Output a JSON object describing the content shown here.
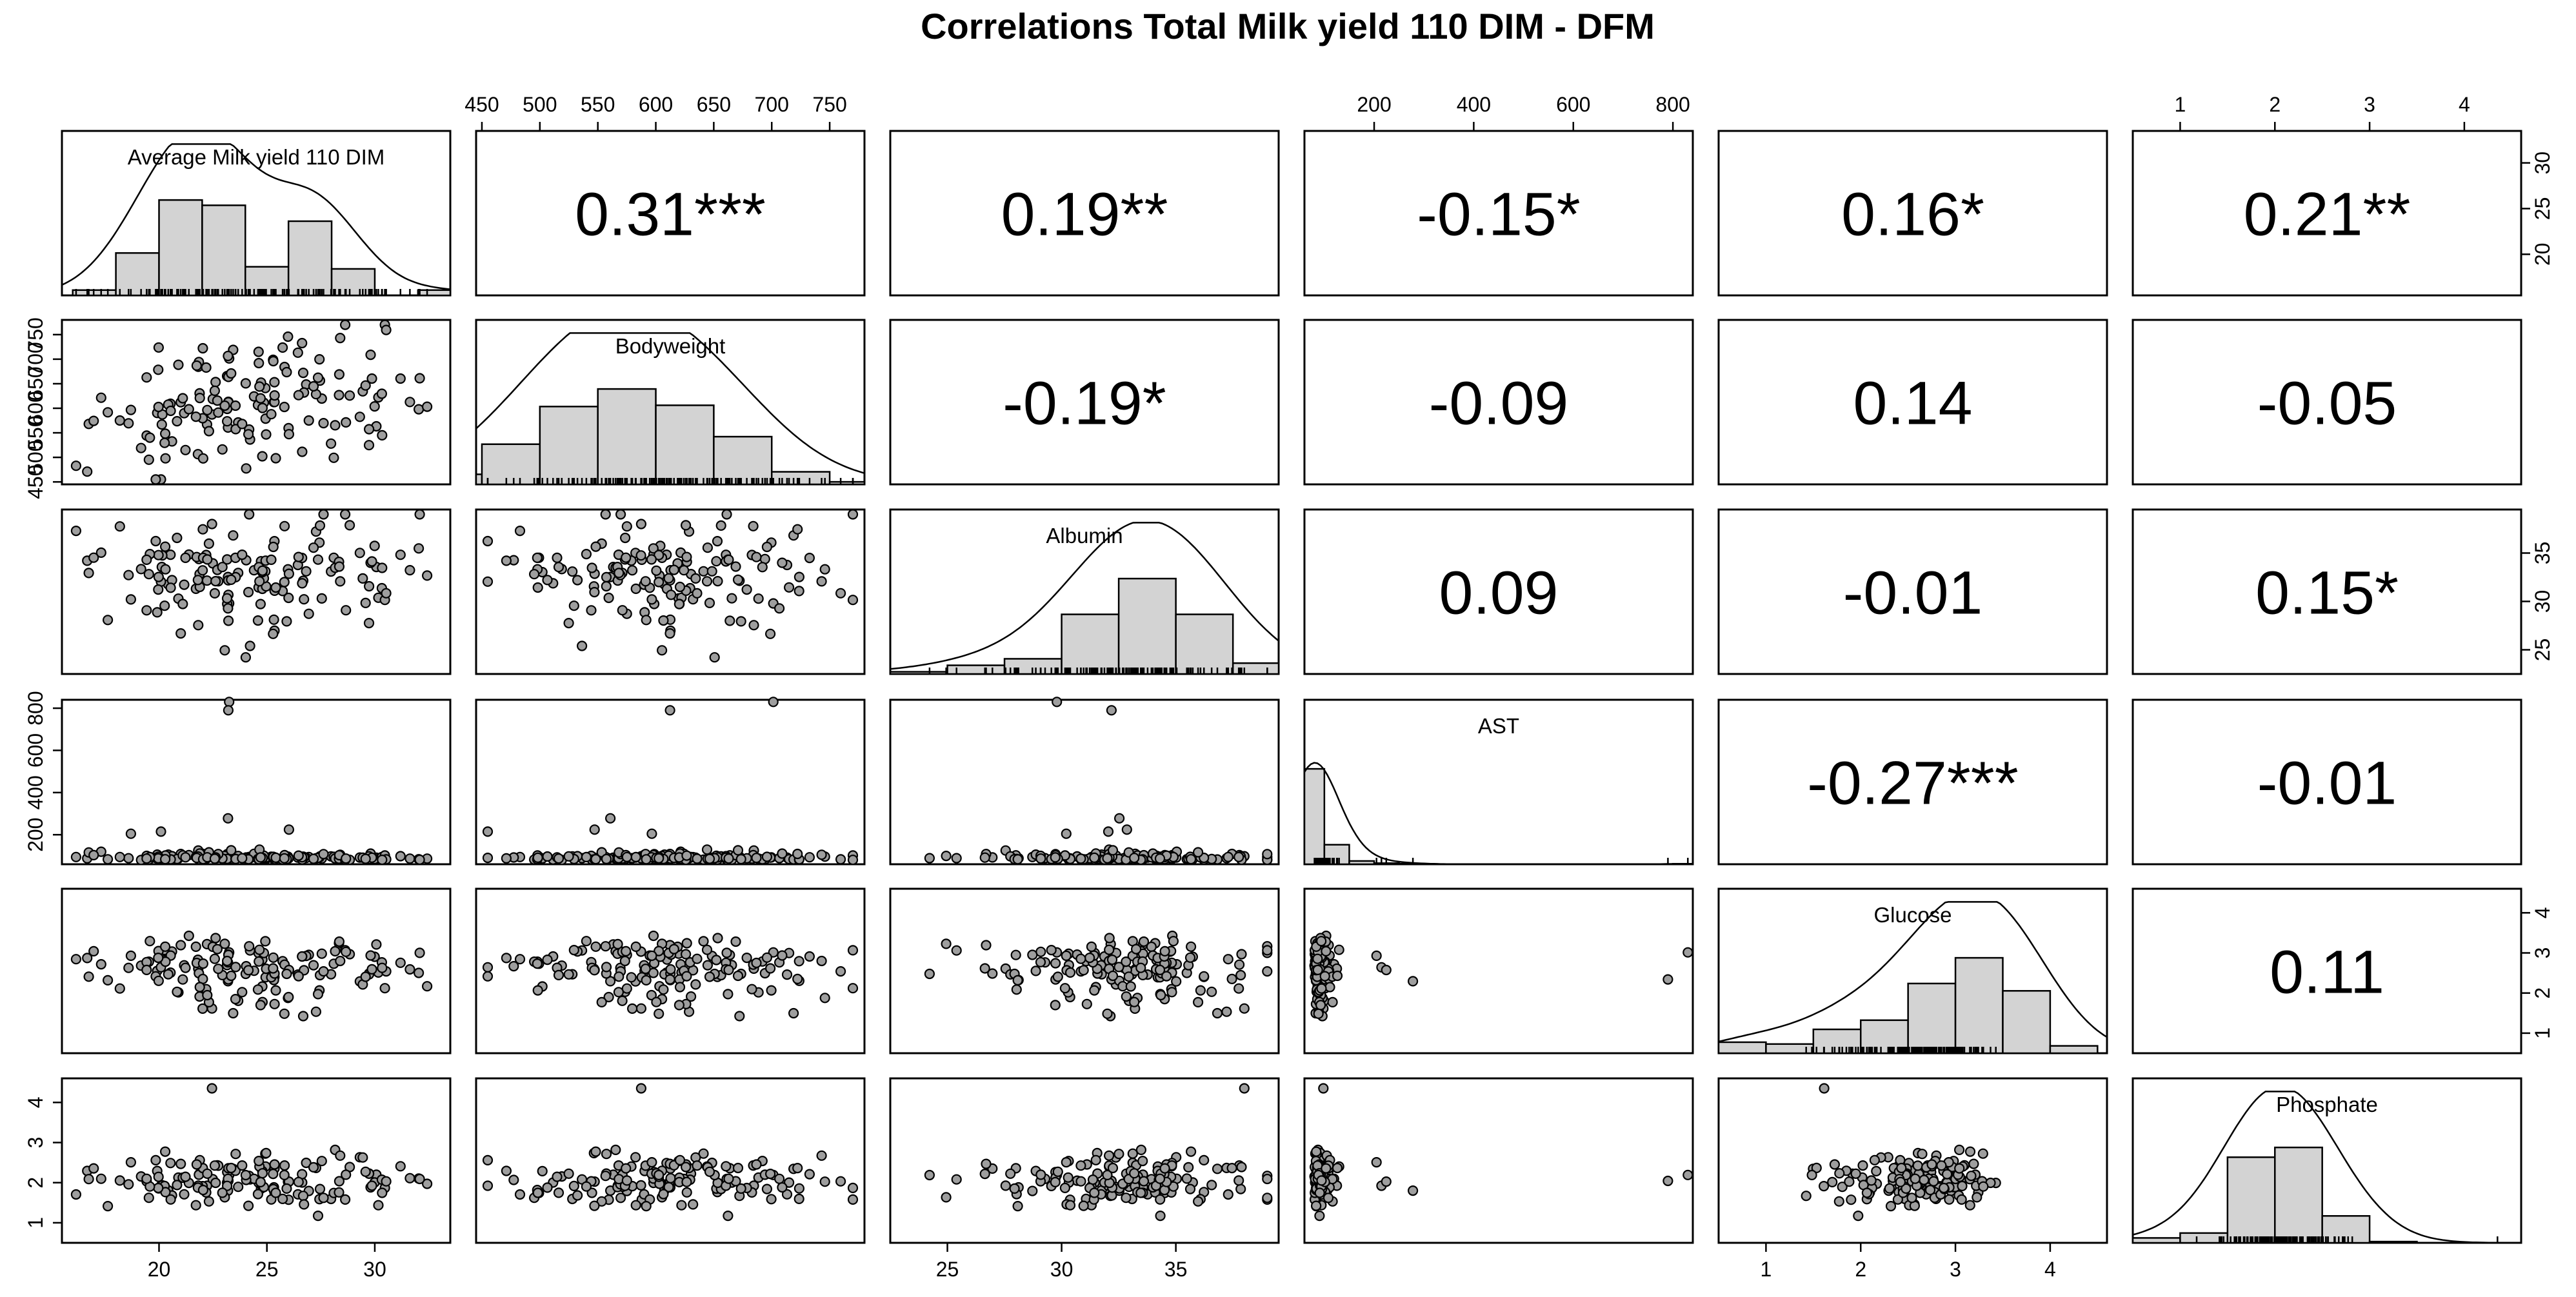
{
  "chart_data": {
    "type": "scatter",
    "subtype": "pairs-matrix",
    "title": "Correlations Total Milk yield 110 DIM - DFM",
    "variables": [
      {
        "name": "Average Milk yield 110 DIM",
        "range": [
          15.5,
          33.5
        ],
        "ticks": [
          20,
          25,
          30
        ],
        "histogram": {
          "breaks": [
            16,
            18,
            20,
            22,
            24,
            26,
            28,
            30,
            32,
            34
          ],
          "counts": [
            0.05,
            0.4,
            0.9,
            0.85,
            0.27,
            0.7,
            0.25,
            0,
            0.05
          ]
        }
      },
      {
        "name": "Bodyweight",
        "range": [
          445,
          780
        ],
        "ticks": [
          450,
          500,
          550,
          600,
          650,
          700,
          750
        ],
        "histogram": {
          "breaks": [
            400,
            450,
            500,
            550,
            600,
            650,
            700,
            750,
            800
          ],
          "counts": [
            0.08,
            0.32,
            0.62,
            0.76,
            0.63,
            0.38,
            0.1,
            0.02
          ]
        }
      },
      {
        "name": "Albumin",
        "range": [
          22.5,
          39.5
        ],
        "ticks": [
          25,
          30,
          35
        ],
        "histogram": {
          "breaks": [
            20,
            22.5,
            25,
            27.5,
            30,
            32.5,
            35,
            37.5,
            40
          ],
          "counts": [
            0.01,
            0.02,
            0.08,
            0.14,
            0.55,
            0.88,
            0.55,
            0.1
          ]
        }
      },
      {
        "name": "AST",
        "range": [
          60,
          840
        ],
        "ticks": [
          200,
          400,
          600,
          800
        ],
        "histogram": {
          "breaks": [
            0,
            50,
            100,
            150,
            200,
            250,
            300,
            350,
            400,
            450,
            500,
            550,
            600,
            650,
            700,
            750,
            800,
            850
          ],
          "counts": [
            0.0,
            0.88,
            0.18,
            0.03,
            0.01,
            0.005,
            0.0,
            0.0,
            0.0,
            0.0,
            0.0,
            0.0,
            0.0,
            0.0,
            0.0,
            0.0,
            0.004
          ]
        }
      },
      {
        "name": "Glucose",
        "range": [
          0.5,
          4.6
        ],
        "ticks": [
          1,
          2,
          3,
          4
        ],
        "histogram": {
          "breaks": [
            0.5,
            1,
            1.5,
            2,
            2.5,
            3,
            3.5,
            4,
            4.5
          ],
          "counts": [
            0.06,
            0.05,
            0.13,
            0.18,
            0.38,
            0.52,
            0.34,
            0.04
          ]
        }
      },
      {
        "name": "Phosphate",
        "range": [
          0.5,
          4.6
        ],
        "ticks": [
          1,
          2,
          3,
          4
        ],
        "histogram": {
          "breaks": [
            0.5,
            1,
            1.5,
            2,
            2.5,
            3,
            3.5,
            4,
            4.5
          ],
          "counts": [
            0.04,
            0.08,
            0.7,
            0.78,
            0.22,
            0.01,
            0,
            0
          ]
        }
      }
    ],
    "correlations": [
      {
        "row": 0,
        "col": 1,
        "text": "0.31***"
      },
      {
        "row": 0,
        "col": 2,
        "text": "0.19**"
      },
      {
        "row": 0,
        "col": 3,
        "text": "-0.15*"
      },
      {
        "row": 0,
        "col": 4,
        "text": "0.16*"
      },
      {
        "row": 0,
        "col": 5,
        "text": "0.21**"
      },
      {
        "row": 1,
        "col": 2,
        "text": "-0.19*"
      },
      {
        "row": 1,
        "col": 3,
        "text": "-0.09"
      },
      {
        "row": 1,
        "col": 4,
        "text": "0.14"
      },
      {
        "row": 1,
        "col": 5,
        "text": "-0.05"
      },
      {
        "row": 2,
        "col": 3,
        "text": "0.09"
      },
      {
        "row": 2,
        "col": 4,
        "text": "-0.01"
      },
      {
        "row": 2,
        "col": 5,
        "text": "0.15*"
      },
      {
        "row": 3,
        "col": 4,
        "text": "-0.27***"
      },
      {
        "row": 3,
        "col": 5,
        "text": "-0.01"
      },
      {
        "row": 4,
        "col": 5,
        "text": "0.11"
      }
    ],
    "axes": {
      "top": [
        1,
        3,
        5
      ],
      "bottom": [
        0,
        2,
        4
      ],
      "left": [
        1,
        3,
        5
      ],
      "right": [
        0,
        2,
        4
      ]
    }
  }
}
